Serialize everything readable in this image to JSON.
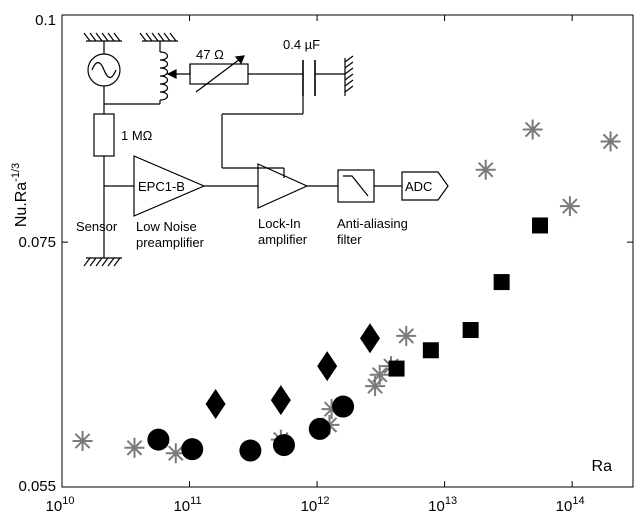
{
  "chart_data": {
    "type": "scatter",
    "title": "",
    "xlabel": "Ra",
    "ylabel": "Nu.Ra",
    "ylabel_exponent": "-1/3",
    "x_scale": "log",
    "y_scale": "log",
    "xlim": [
      10000000000.0,
      300000000000000.0
    ],
    "ylim": [
      0.055,
      0.1
    ],
    "grid": false,
    "x_ticks": [
      {
        "base": "10",
        "exp": "10",
        "value": 10000000000.0
      },
      {
        "base": "10",
        "exp": "11",
        "value": 100000000000.0
      },
      {
        "base": "10",
        "exp": "12",
        "value": 1000000000000.0
      },
      {
        "base": "10",
        "exp": "13",
        "value": 10000000000000.0
      },
      {
        "base": "10",
        "exp": "14",
        "value": 100000000000000.0
      }
    ],
    "y_ticks": [
      {
        "label": "0.055",
        "value": 0.055
      },
      {
        "label": "0.075",
        "value": 0.075
      },
      {
        "label": "0.1",
        "value": 0.1
      }
    ],
    "series": [
      {
        "marker": "star",
        "color": "#7a7a7a",
        "points": [
          [
            14500000000.0,
            0.0583
          ],
          [
            37000000000.0,
            0.0578
          ],
          [
            78000000000.0,
            0.0574
          ],
          [
            520000000000.0,
            0.0584
          ],
          [
            1250000000000.0,
            0.0595
          ],
          [
            1300000000000.0,
            0.0607
          ],
          [
            2850000000000.0,
            0.0625
          ],
          [
            3100000000000.0,
            0.0634
          ],
          [
            3800000000000.0,
            0.0641
          ],
          [
            5000000000000.0,
            0.0666
          ],
          [
            21000000000000.0,
            0.0822
          ],
          [
            49000000000000.0,
            0.0865
          ],
          [
            96000000000000.0,
            0.0785
          ],
          [
            200000000000000.0,
            0.0852
          ]
        ]
      },
      {
        "marker": "circle",
        "color": "#000000",
        "points": [
          [
            57000000000.0,
            0.0584
          ],
          [
            105000000000.0,
            0.0577
          ],
          [
            300000000000.0,
            0.0576
          ],
          [
            550000000000.0,
            0.058
          ],
          [
            1050000000000.0,
            0.0592
          ],
          [
            1600000000000.0,
            0.0609
          ]
        ]
      },
      {
        "marker": "diamond",
        "color": "#000000",
        "points": [
          [
            160000000000.0,
            0.0611
          ],
          [
            520000000000.0,
            0.0614
          ],
          [
            1200000000000.0,
            0.0641
          ],
          [
            2600000000000.0,
            0.0664
          ]
        ]
      },
      {
        "marker": "square",
        "color": "#000000",
        "points": [
          [
            4200000000000.0,
            0.0639
          ],
          [
            7800000000000.0,
            0.0654
          ],
          [
            16000000000000.0,
            0.0671
          ],
          [
            28000000000000.0,
            0.0713
          ],
          [
            56000000000000.0,
            0.0766
          ]
        ]
      }
    ]
  },
  "inset_circuit": {
    "resistor_47": "47 Ω",
    "capacitor": "0.4 µF",
    "resistor_1m": "1 MΩ",
    "preamp_block": "EPC1-B",
    "sensor": "Sensor",
    "preamp_caption_1": "Low Noise",
    "preamp_caption_2": "preamplifier",
    "lockin_caption_1": "Lock-In",
    "lockin_caption_2": "amplifier",
    "filter_caption_1": "Anti-aliasing",
    "filter_caption_2": "filter",
    "adc": "ADC"
  }
}
